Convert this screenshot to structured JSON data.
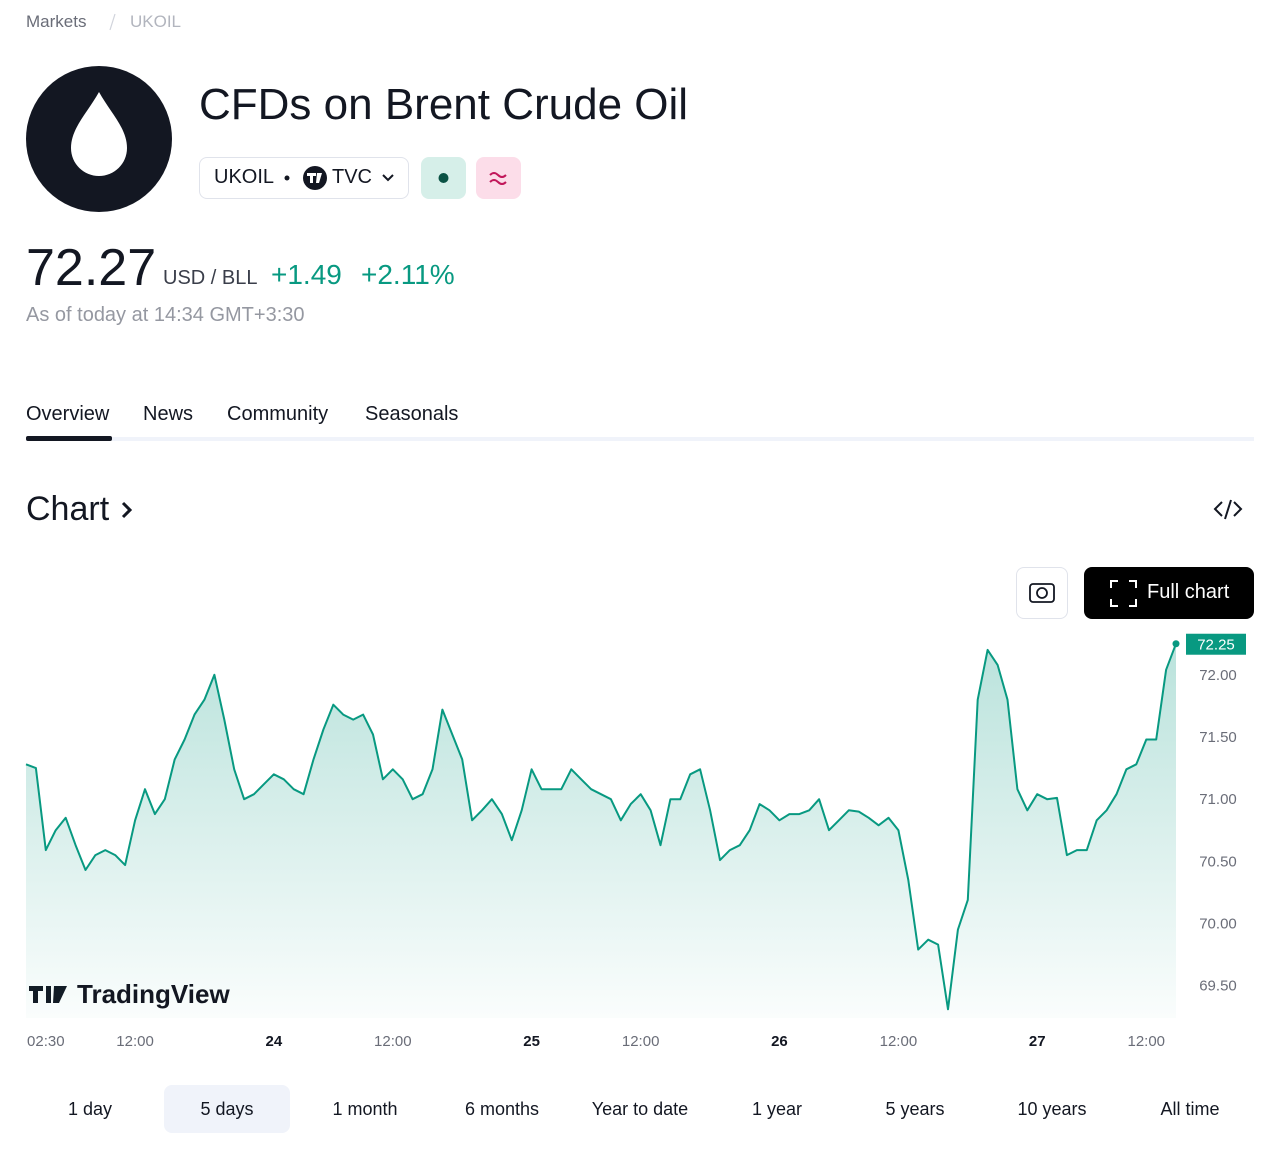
{
  "breadcrumb": [
    "Markets",
    "UKOIL"
  ],
  "header": {
    "title": "CFDs on Brent Crude Oil",
    "symbol": "UKOIL",
    "exchange": "TVC"
  },
  "quote": {
    "price": "72.27",
    "unit": "USD / BLL",
    "change": "+1.49",
    "change_percent": "+2.11%",
    "as_of": "As of today at 14:34 GMT+3:30"
  },
  "tabs": [
    "Overview",
    "News",
    "Community",
    "Seasonals"
  ],
  "chart_section": {
    "heading": "Chart",
    "full_chart_button": "Full chart"
  },
  "chart_data": {
    "type": "area",
    "color": "#089981",
    "values": [
      71.28,
      71.25,
      70.59,
      70.75,
      70.85,
      70.63,
      70.43,
      70.55,
      70.59,
      70.55,
      70.47,
      70.83,
      71.08,
      70.88,
      71.0,
      71.32,
      71.48,
      71.68,
      71.8,
      72.0,
      71.64,
      71.24,
      71.0,
      71.04,
      71.12,
      71.2,
      71.16,
      71.08,
      71.04,
      71.32,
      71.56,
      71.76,
      71.68,
      71.64,
      71.68,
      71.52,
      71.16,
      71.24,
      71.16,
      71.0,
      71.04,
      71.24,
      71.72,
      71.52,
      71.32,
      70.83,
      70.91,
      71.0,
      70.88,
      70.67,
      70.91,
      71.24,
      71.08,
      71.08,
      71.08,
      71.24,
      71.16,
      71.08,
      71.04,
      71.0,
      70.83,
      70.96,
      71.04,
      70.91,
      70.63,
      71.0,
      71.0,
      71.2,
      71.24,
      70.91,
      70.51,
      70.59,
      70.63,
      70.75,
      70.96,
      70.91,
      70.83,
      70.88,
      70.88,
      70.91,
      71.0,
      70.75,
      70.83,
      70.91,
      70.9,
      70.85,
      70.79,
      70.85,
      70.75,
      70.35,
      69.79,
      69.87,
      69.83,
      69.31,
      69.95,
      70.19,
      71.8,
      72.2,
      72.08,
      71.8,
      71.08,
      70.91,
      71.04,
      71.0,
      71.01,
      70.55,
      70.59,
      70.59,
      70.83,
      70.91,
      71.04,
      71.24,
      71.28,
      71.48,
      71.48,
      72.04,
      72.25
    ],
    "xlim": [
      0,
      116
    ],
    "xticks": [
      {
        "value": 2,
        "label": "02:30"
      },
      {
        "value": 11,
        "label": "12:00"
      },
      {
        "value": 25,
        "label": "24"
      },
      {
        "value": 37,
        "label": "12:00"
      },
      {
        "value": 51,
        "label": "25"
      },
      {
        "value": 62,
        "label": "12:00"
      },
      {
        "value": 76,
        "label": "26"
      },
      {
        "value": 88,
        "label": "12:00"
      },
      {
        "value": 102,
        "label": "27"
      },
      {
        "value": 113,
        "label": "12:00"
      }
    ],
    "ylim": [
      69.24,
      72.28
    ],
    "yticks": [
      {
        "value": 69.5,
        "label": "69.50"
      },
      {
        "value": 70,
        "label": "70.00"
      },
      {
        "value": 70.5,
        "label": "70.50"
      },
      {
        "value": 71,
        "label": "71.00"
      },
      {
        "value": 71.5,
        "label": "71.50"
      },
      {
        "value": 72,
        "label": "72.00"
      }
    ],
    "last_price": 72.25,
    "watermark": "TradingView"
  },
  "ranges": [
    "1 day",
    "5 days",
    "1 month",
    "6 months",
    "Year to date",
    "1 year",
    "5 years",
    "10 years",
    "All time"
  ]
}
